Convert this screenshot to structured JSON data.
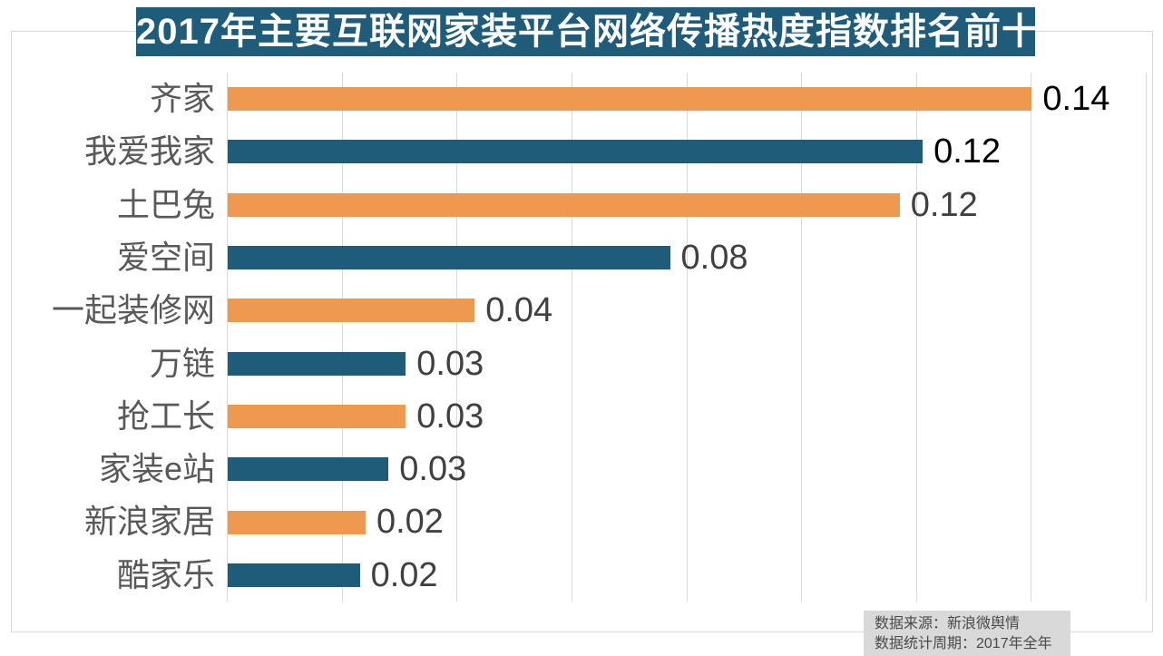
{
  "title": "2017年主要互联网家装平台网络传播热度指数排名前十",
  "colors": {
    "banner_bg": "#1F5C7A",
    "bar_blue": "#1F5C7A",
    "bar_orange": "#EE9850",
    "gridline": "#D9D9D9",
    "frame_border": "#D9D9D9",
    "category_label": "#595959",
    "value_label_dark": "#000000",
    "value_label_gray": "#404040",
    "source_bg": "#D9D9D9",
    "source_text": "#4a4a4a"
  },
  "chart_data": {
    "type": "bar",
    "orientation": "horizontal",
    "title": "2017年主要互联网家装平台网络传播热度指数排名前十",
    "categories": [
      "齐家",
      "我爱我家",
      "土巴兔",
      "爱空间",
      "一起装修网",
      "万链",
      "抢工长",
      "家装e站",
      "新浪家居",
      "酷家乐"
    ],
    "values": [
      0.14,
      0.12,
      0.12,
      0.08,
      0.04,
      0.03,
      0.03,
      0.03,
      0.02,
      0.02
    ],
    "value_labels": [
      "0.14",
      "0.12",
      "0.12",
      "0.08",
      "0.04",
      "0.03",
      "0.03",
      "0.03",
      "0.02",
      "0.02"
    ],
    "bar_lengths_precise": [
      0.14,
      0.121,
      0.117,
      0.077,
      0.043,
      0.031,
      0.031,
      0.028,
      0.024,
      0.023
    ],
    "bar_colors": [
      "#EE9850",
      "#1F5C7A",
      "#EE9850",
      "#1F5C7A",
      "#EE9850",
      "#1F5C7A",
      "#EE9850",
      "#1F5C7A",
      "#EE9850",
      "#1F5C7A"
    ],
    "value_label_colors": [
      "#000000",
      "#000000",
      "#404040",
      "#404040",
      "#404040",
      "#404040",
      "#404040",
      "#404040",
      "#404040",
      "#404040"
    ],
    "xlabel": "",
    "ylabel": "",
    "xlim": [
      0,
      0.16
    ],
    "gridline_interval": 0.02,
    "grid": true,
    "legend": "none"
  },
  "source": {
    "line1": "数据来源：新浪微舆情",
    "line2": "数据统计周期：2017年全年"
  }
}
